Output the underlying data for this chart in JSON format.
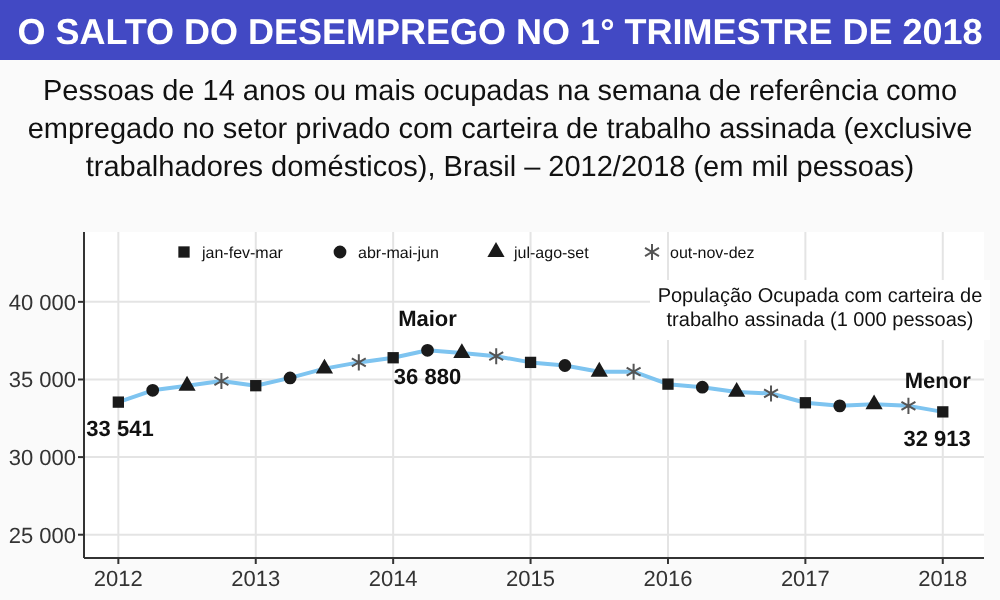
{
  "chart_data": {
    "type": "line",
    "title": "O SALTO DO DESEMPREGO NO 1° TRIMESTRE DE 2018",
    "subtitle": "Pessoas de 14 anos ou mais ocupadas na semana de referência como empregado no setor privado com carteira de trabalho assinada (exclusive trabalhadores domésticos), Brasil – 2012/2018 (em mil pessoas)",
    "annotations": [
      "População Ocupada com carteira de trabalho assinada (1 000 pessoas)",
      {
        "text": "Maior",
        "x": 2014.25,
        "y": 36880
      },
      {
        "text": "Menor",
        "x": 2018,
        "y": 32913
      }
    ],
    "xlim": [
      2011.75,
      2018.3
    ],
    "xticks": [
      2012,
      2013,
      2014,
      2015,
      2016,
      2017,
      2018
    ],
    "ylim": [
      23500,
      44500
    ],
    "yticks": [
      {
        "value": 25000,
        "label": "25 000"
      },
      {
        "value": 30000,
        "label": "30 000"
      },
      {
        "value": 35000,
        "label": "35 000"
      },
      {
        "value": 40000,
        "label": "40 000"
      }
    ],
    "grid": true,
    "legend": "top",
    "line_style": "solid",
    "series": [
      {
        "type": "line",
        "color": "#7ec4f0",
        "marker": "none",
        "x": [
          2012,
          2012.25,
          2012.5,
          2012.75,
          2013,
          2013.25,
          2013.5,
          2013.75,
          2014,
          2014.25,
          2014.5,
          2014.75,
          2015,
          2015.25,
          2015.5,
          2015.75,
          2016,
          2016.25,
          2016.5,
          2016.75,
          2017,
          2017.25,
          2017.5,
          2017.75,
          2018
        ],
        "values": [
          33541,
          34300,
          34600,
          34900,
          34600,
          35100,
          35700,
          36100,
          36400,
          36880,
          36700,
          36500,
          36100,
          35900,
          35500,
          35500,
          34700,
          34500,
          34200,
          34100,
          33500,
          33300,
          33400,
          33300,
          32913
        ],
        "value_labels": [
          "33 541",
          null,
          null,
          null,
          null,
          null,
          null,
          null,
          null,
          "36 880",
          null,
          null,
          null,
          null,
          null,
          null,
          null,
          null,
          null,
          null,
          null,
          null,
          null,
          null,
          "32 913"
        ]
      },
      {
        "type": "scatter",
        "name": "jan-fev-mar",
        "color": "#1a1a1a",
        "marker": "square",
        "x": [
          2012,
          2013,
          2014,
          2015,
          2016,
          2017,
          2018
        ],
        "values": [
          33541,
          34600,
          36400,
          36100,
          34700,
          33500,
          32913
        ]
      },
      {
        "type": "scatter",
        "name": "abr-mai-jun",
        "color": "#1a1a1a",
        "marker": "circle",
        "x": [
          2012.25,
          2013.25,
          2014.25,
          2015.25,
          2016.25,
          2017.25
        ],
        "values": [
          34300,
          35100,
          36880,
          35900,
          34500,
          33300
        ]
      },
      {
        "type": "scatter",
        "name": "jul-ago-set",
        "color": "#1a1a1a",
        "marker": "triangle",
        "x": [
          2012.5,
          2013.5,
          2014.5,
          2015.5,
          2016.5,
          2017.5
        ],
        "values": [
          34600,
          35700,
          36700,
          35500,
          34200,
          33400
        ]
      },
      {
        "type": "scatter",
        "name": "out-nov-dez",
        "color": "#555555",
        "marker": "cross",
        "x": [
          2012.75,
          2013.75,
          2014.75,
          2015.75,
          2016.75,
          2017.75
        ],
        "values": [
          34900,
          36100,
          36500,
          35500,
          34100,
          33300
        ]
      }
    ]
  }
}
